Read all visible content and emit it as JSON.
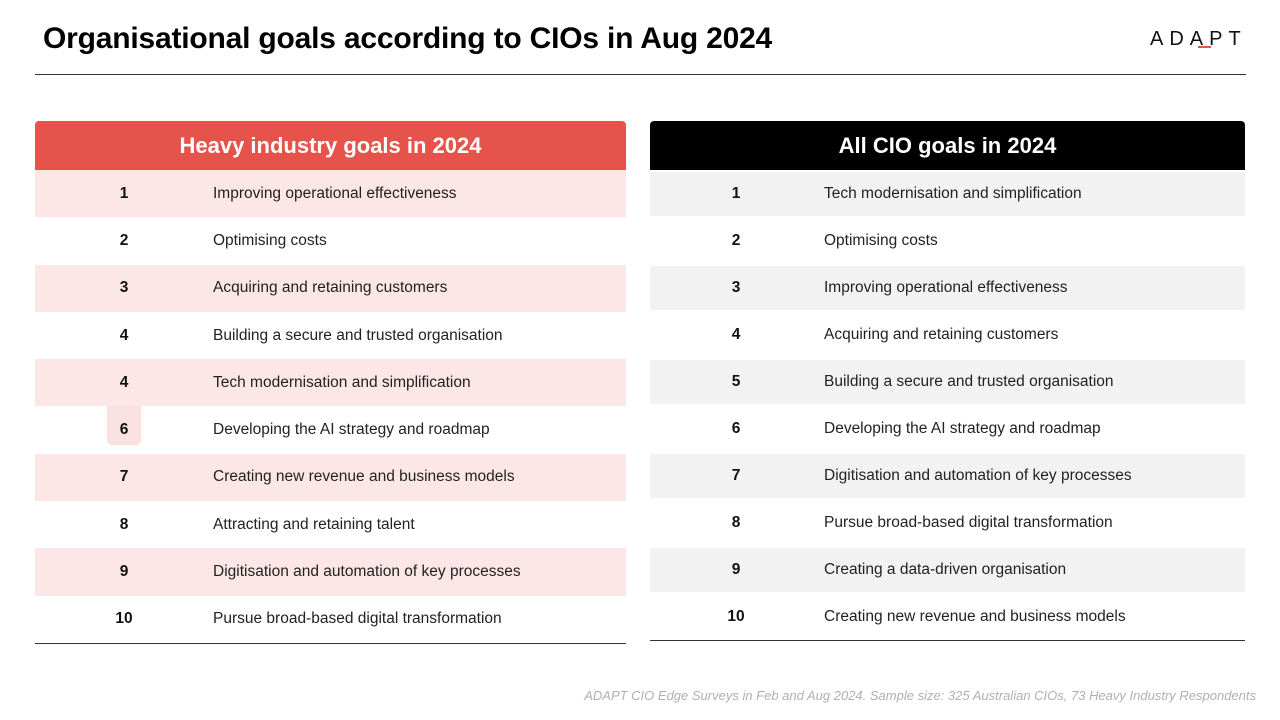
{
  "title": "Organisational goals according to CIOs in Aug 2024",
  "logo": {
    "text": "ADAPT",
    "icon": "adapt-logo"
  },
  "colors": {
    "accent": "#e5534b",
    "accent_light": "#fde6e6",
    "dark": "#000000",
    "grey_light": "#f2f2f2"
  },
  "heavy_industry": {
    "header": "Heavy industry goals in 2024",
    "rows": [
      {
        "rank": "1",
        "goal": "Improving operational effectiveness"
      },
      {
        "rank": "2",
        "goal": "Optimising costs"
      },
      {
        "rank": "3",
        "goal": "Acquiring and retaining customers"
      },
      {
        "rank": "4",
        "goal": "Building a secure and trusted organisation"
      },
      {
        "rank": "4",
        "goal": "Tech modernisation and simplification"
      },
      {
        "rank": "6",
        "goal": "Developing the AI strategy and roadmap"
      },
      {
        "rank": "7",
        "goal": "Creating new revenue and business models"
      },
      {
        "rank": "8",
        "goal": "Attracting and retaining talent"
      },
      {
        "rank": "9",
        "goal": "Digitisation and automation of key processes"
      },
      {
        "rank": "10",
        "goal": "Pursue broad-based digital transformation"
      }
    ]
  },
  "all_cio": {
    "header": "All CIO goals in 2024",
    "rows": [
      {
        "rank": "1",
        "goal": "Tech modernisation and simplification"
      },
      {
        "rank": "2",
        "goal": "Optimising costs"
      },
      {
        "rank": "3",
        "goal": "Improving operational effectiveness"
      },
      {
        "rank": "4",
        "goal": "Acquiring and retaining customers"
      },
      {
        "rank": "5",
        "goal": "Building a secure and trusted organisation"
      },
      {
        "rank": "6",
        "goal": "Developing the AI strategy and roadmap"
      },
      {
        "rank": "7",
        "goal": "Digitisation and automation of key processes"
      },
      {
        "rank": "8",
        "goal": "Pursue broad-based digital transformation"
      },
      {
        "rank": "9",
        "goal": "Creating a data-driven organisation"
      },
      {
        "rank": "10",
        "goal": "Creating new revenue and business models"
      }
    ]
  },
  "footnote": "ADAPT CIO Edge Surveys in Feb and Aug 2024. Sample size: 325 Australian CIOs, 73 Heavy Industry Respondents"
}
